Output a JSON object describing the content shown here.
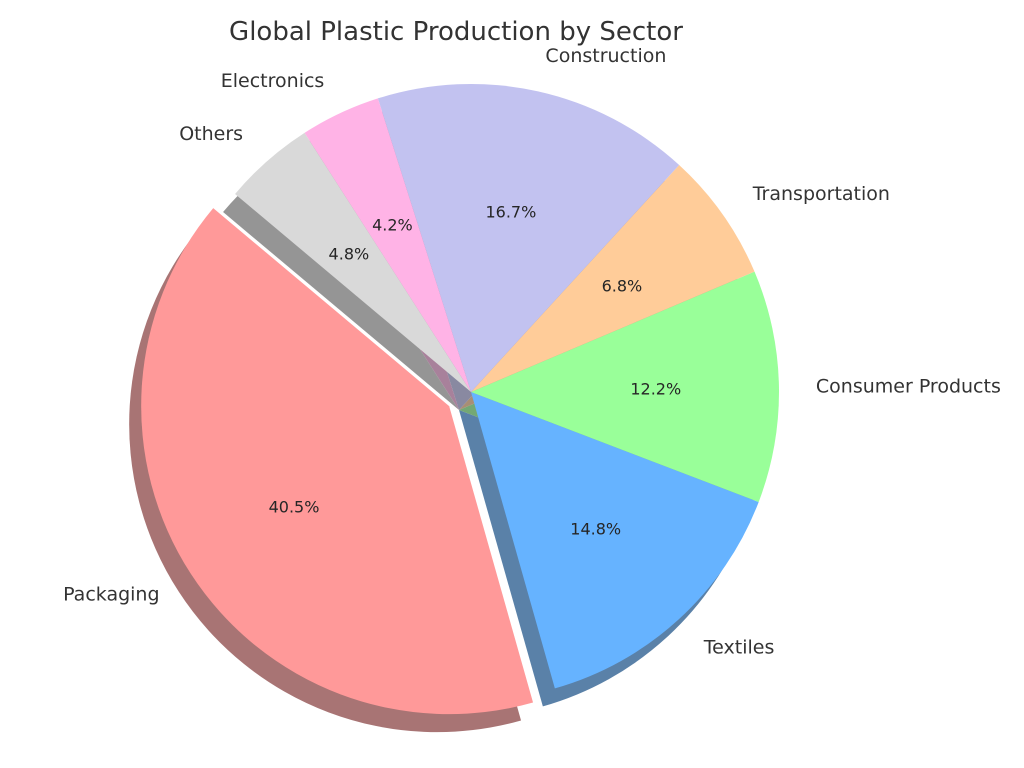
{
  "chart_data": {
    "type": "pie",
    "title": "Global Plastic Production by Sector",
    "categories": [
      "Packaging",
      "Textiles",
      "Consumer Products",
      "Transportation",
      "Construction",
      "Electronics",
      "Others"
    ],
    "values": [
      40.5,
      14.8,
      12.2,
      6.8,
      16.7,
      4.2,
      4.8
    ],
    "value_labels": [
      "40.5%",
      "14.8%",
      "12.2%",
      "6.8%",
      "16.7%",
      "4.2%",
      "4.8%"
    ],
    "colors": [
      "#ff9999",
      "#66b3ff",
      "#99ff99",
      "#ffcc99",
      "#c2c2f0",
      "#ffb3e6",
      "#d9d9d9"
    ],
    "exploded": "Packaging",
    "shadow": true,
    "legend": "none"
  }
}
